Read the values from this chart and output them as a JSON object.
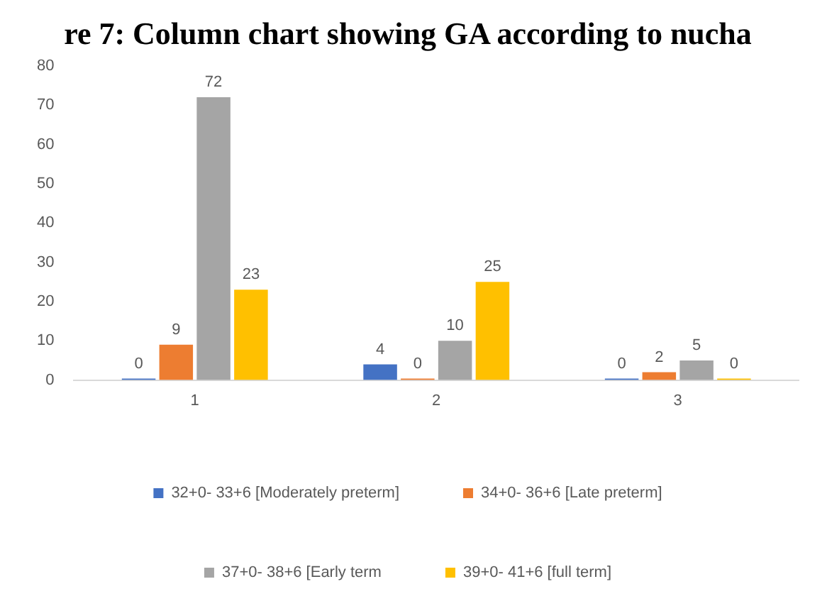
{
  "chart_data": {
    "type": "bar",
    "title": "re 7: Column chart showing GA according to nucha",
    "categories": [
      "1",
      "2",
      "3"
    ],
    "series": [
      {
        "name": "32+0- 33+6 [Moderately preterm]",
        "color": "#4472c4",
        "values": [
          0,
          4,
          0
        ]
      },
      {
        "name": "34+0- 36+6 [Late preterm]",
        "color": "#ed7d31",
        "values": [
          9,
          0,
          2
        ]
      },
      {
        "name": "37+0- 38+6 [Early term",
        "color": "#a5a5a5",
        "values": [
          72,
          10,
          5
        ]
      },
      {
        "name": "39+0- 41+6 [full term]",
        "color": "#ffc000",
        "values": [
          23,
          25,
          0
        ]
      }
    ],
    "ylim": [
      0,
      80
    ],
    "yticks": [
      0,
      10,
      20,
      30,
      40,
      50,
      60,
      70,
      80
    ],
    "grid": false,
    "legend": "bottom",
    "data_labels": true
  }
}
